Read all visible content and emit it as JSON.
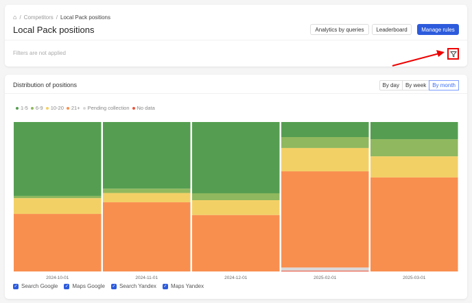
{
  "breadcrumb": {
    "home_icon": "home-icon",
    "items": [
      "Competitors",
      "Local Pack positions"
    ]
  },
  "header": {
    "title": "Local Pack positions",
    "buttons": [
      "Analytics by queries",
      "Leaderboard",
      "Manage rules"
    ],
    "accent": "#2d5bdc"
  },
  "filters": {
    "status": "Filters are not applied",
    "icon": "filter-icon"
  },
  "panel": {
    "title": "Distribution of positions",
    "periods": [
      "By day",
      "By week",
      "By month"
    ],
    "selected_period": "By month"
  },
  "chart_data": {
    "type": "bar",
    "stacked": true,
    "normalized": true,
    "ylim": [
      0,
      100
    ],
    "categories": [
      "2024-10-01",
      "2024-11-01",
      "2024-12-01",
      "2025-02-01",
      "2025-03-01"
    ],
    "series": [
      {
        "name": "1-5",
        "color": "#559e51",
        "values": [
          49.5,
          44.6,
          47.7,
          10.1,
          11.5
        ]
      },
      {
        "name": "6-9",
        "color": "#90b85e",
        "values": [
          1.5,
          2.9,
          4.6,
          7.3,
          11.5
        ]
      },
      {
        "name": "10-20",
        "color": "#f3d066",
        "values": [
          10.5,
          6.2,
          10,
          15.6,
          14.1
        ]
      },
      {
        "name": "21+",
        "color": "#f98f4f",
        "values": [
          38.5,
          46.3,
          37.7,
          64.4,
          62.9
        ]
      },
      {
        "name": "Pending collection",
        "color": "#d9d9d9",
        "values": [
          0,
          0,
          0,
          2.1,
          0
        ]
      },
      {
        "name": "No data",
        "color": "#e8553f",
        "values": [
          0,
          0,
          0,
          0.5,
          0
        ]
      }
    ]
  },
  "sources": [
    {
      "label": "Search Google",
      "checked": true
    },
    {
      "label": "Maps Google",
      "checked": true
    },
    {
      "label": "Search Yandex",
      "checked": true
    },
    {
      "label": "Maps Yandex",
      "checked": true
    }
  ]
}
